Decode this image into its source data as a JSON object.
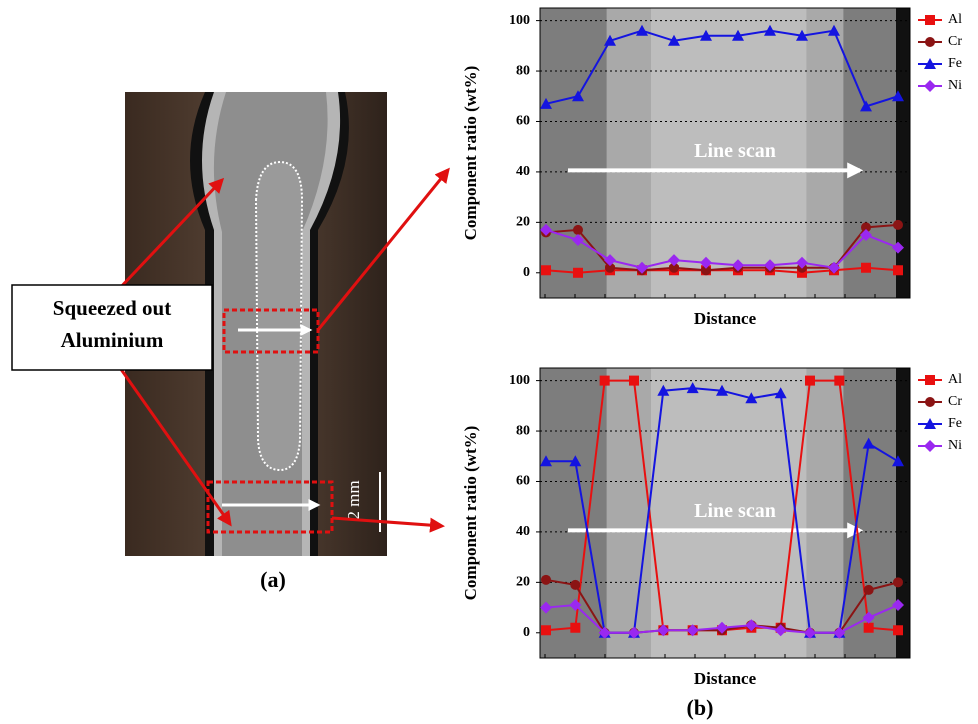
{
  "panel_a": {
    "label": "(a)",
    "callout": [
      "Squeezed out",
      "Aluminium"
    ],
    "scale_bar": "2 mm"
  },
  "panel_b": {
    "label": "(b)"
  },
  "chart_data": [
    {
      "type": "line",
      "annotation": "Line scan",
      "x_label": "Distance",
      "y_label": "Component ratio (wt%)",
      "categories": [
        null,
        null,
        null,
        null,
        null,
        null,
        null,
        null,
        null,
        null,
        null,
        null
      ],
      "ylim": [
        -10,
        105
      ],
      "yticks": [
        0,
        20,
        40,
        60,
        80,
        100
      ],
      "grid": true,
      "legend": "right",
      "series": [
        {
          "name": "Al",
          "color": "#e81010",
          "marker": "square",
          "values": [
            1,
            0,
            1,
            1,
            1,
            1,
            1,
            1,
            0,
            1,
            2,
            1
          ]
        },
        {
          "name": "Cr",
          "color": "#8b1414",
          "marker": "circle",
          "values": [
            16,
            17,
            2,
            1,
            2,
            1,
            2,
            2,
            2,
            2,
            18,
            19
          ]
        },
        {
          "name": "Fe",
          "color": "#1414e0",
          "marker": "triangle",
          "values": [
            67,
            70,
            92,
            96,
            92,
            94,
            94,
            96,
            94,
            96,
            66,
            70
          ]
        },
        {
          "name": "Ni",
          "color": "#9a28f0",
          "marker": "diamond",
          "values": [
            17,
            13,
            5,
            2,
            5,
            4,
            3,
            3,
            4,
            2,
            15,
            10
          ]
        }
      ]
    },
    {
      "type": "line",
      "annotation": "Line scan",
      "x_label": "Distance",
      "y_label": "Component ratio (wt%)",
      "categories": [
        null,
        null,
        null,
        null,
        null,
        null,
        null,
        null,
        null,
        null,
        null,
        null,
        null
      ],
      "ylim": [
        -10,
        105
      ],
      "yticks": [
        0,
        20,
        40,
        60,
        80,
        100
      ],
      "grid": true,
      "legend": "right",
      "series": [
        {
          "name": "Al",
          "color": "#e81010",
          "marker": "square",
          "values": [
            1,
            2,
            100,
            100,
            1,
            1,
            1,
            2,
            2,
            100,
            100,
            2,
            1
          ]
        },
        {
          "name": "Cr",
          "color": "#8b1414",
          "marker": "circle",
          "values": [
            21,
            19,
            0,
            0,
            1,
            1,
            1,
            3,
            2,
            0,
            0,
            17,
            20
          ]
        },
        {
          "name": "Fe",
          "color": "#1414e0",
          "marker": "triangle",
          "values": [
            68,
            68,
            0,
            0,
            96,
            97,
            96,
            93,
            95,
            0,
            0,
            75,
            68
          ]
        },
        {
          "name": "Ni",
          "color": "#9a28f0",
          "marker": "diamond",
          "values": [
            10,
            11,
            0,
            0,
            1,
            1,
            2,
            3,
            1,
            0,
            0,
            6,
            11
          ]
        }
      ]
    }
  ]
}
